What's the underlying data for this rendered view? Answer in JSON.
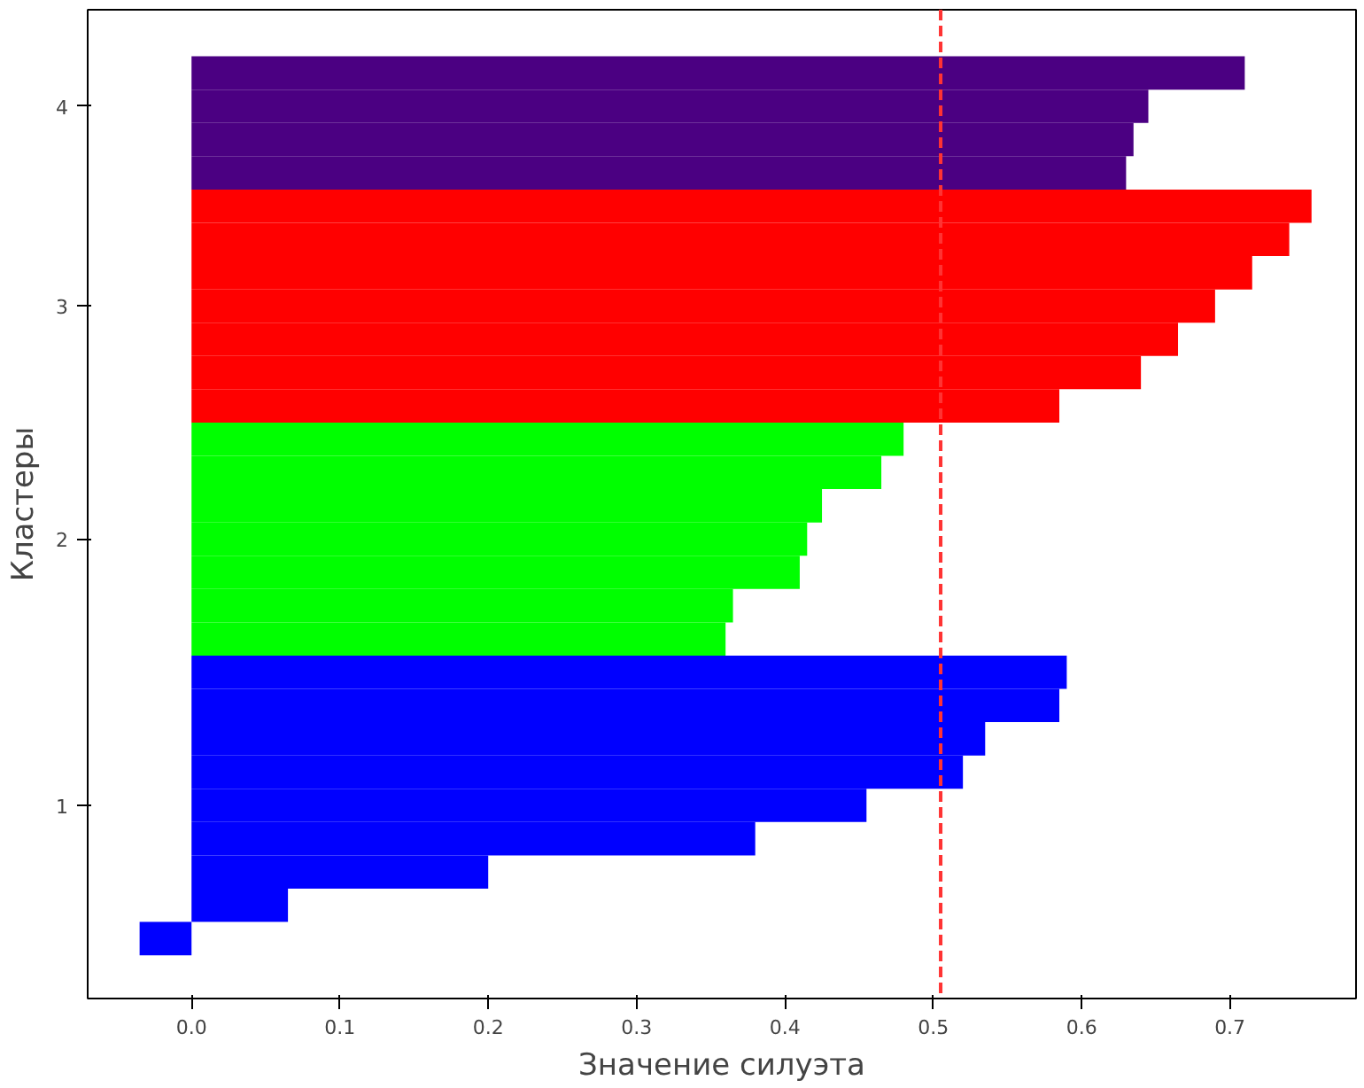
{
  "chart_data": {
    "type": "bar",
    "orientation": "horizontal",
    "xlabel": "Значение силуэта",
    "ylabel": "Кластеры",
    "xlim": [
      -0.07,
      0.785
    ],
    "xticks": [
      {
        "value": 0,
        "label": "0.0"
      },
      0.1,
      0.2,
      0.3,
      0.4,
      0.5,
      0.6,
      0.7
    ],
    "categories": [
      null,
      "4",
      null,
      null,
      null,
      null,
      null,
      "3",
      null,
      null,
      null,
      null,
      null,
      null,
      "2",
      null,
      null,
      null,
      null,
      null,
      null,
      null,
      "1",
      null,
      null,
      null,
      null
    ],
    "series": [
      {
        "color": "#4b0082",
        "values": [
          0.71,
          0.645,
          0.635,
          0.63,
          null,
          null,
          null,
          null,
          null,
          null,
          null,
          null,
          null,
          null,
          null,
          null,
          null,
          null,
          null,
          null,
          null,
          null,
          null,
          null,
          null,
          null,
          null
        ]
      },
      {
        "color": "#ff0000",
        "values": [
          null,
          null,
          null,
          null,
          0.755,
          0.74,
          0.715,
          0.69,
          0.665,
          0.64,
          0.585,
          null,
          null,
          null,
          null,
          null,
          null,
          null,
          null,
          null,
          null,
          null,
          null,
          null,
          null,
          null,
          null
        ]
      },
      {
        "color": "#00ff00",
        "values": [
          null,
          null,
          null,
          null,
          null,
          null,
          null,
          null,
          null,
          null,
          null,
          0.48,
          0.465,
          0.425,
          0.415,
          0.41,
          0.365,
          0.36,
          null,
          null,
          null,
          null,
          null,
          null,
          null,
          null,
          null
        ]
      },
      {
        "color": "#0000ff",
        "values": [
          null,
          null,
          null,
          null,
          null,
          null,
          null,
          null,
          null,
          null,
          null,
          null,
          null,
          null,
          null,
          null,
          null,
          null,
          0.59,
          0.585,
          0.535,
          0.52,
          0.455,
          0.38,
          0.2,
          0.065,
          -0.035
        ]
      }
    ],
    "ref_lines": [
      {
        "axis": "x",
        "value": 0.505,
        "color": "#ff3333",
        "line_style": "dashed"
      }
    ],
    "grid": false
  }
}
